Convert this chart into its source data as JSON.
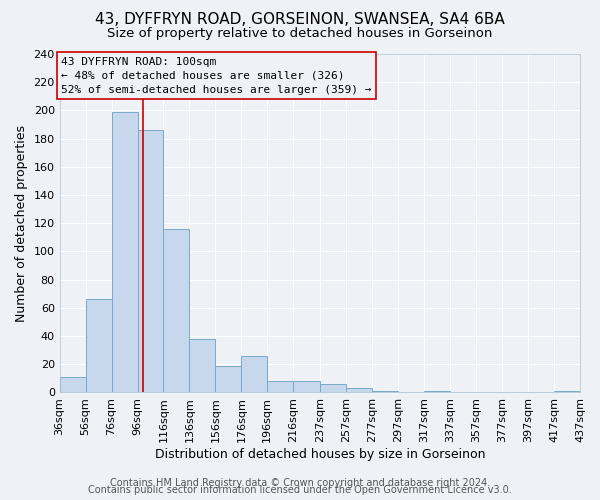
{
  "title": "43, DYFFRYN ROAD, GORSEINON, SWANSEA, SA4 6BA",
  "subtitle": "Size of property relative to detached houses in Gorseinon",
  "xlabel": "Distribution of detached houses by size in Gorseinon",
  "ylabel": "Number of detached properties",
  "bin_edges": [
    36,
    56,
    76,
    96,
    116,
    136,
    156,
    176,
    196,
    216,
    237,
    257,
    277,
    297,
    317,
    337,
    357,
    377,
    397,
    417,
    437
  ],
  "bin_labels": [
    "36sqm",
    "56sqm",
    "76sqm",
    "96sqm",
    "116sqm",
    "136sqm",
    "156sqm",
    "176sqm",
    "196sqm",
    "216sqm",
    "237sqm",
    "257sqm",
    "277sqm",
    "297sqm",
    "317sqm",
    "337sqm",
    "357sqm",
    "377sqm",
    "397sqm",
    "417sqm",
    "437sqm"
  ],
  "counts": [
    11,
    66,
    199,
    186,
    116,
    38,
    19,
    26,
    8,
    8,
    6,
    3,
    1,
    0,
    1,
    0,
    0,
    0,
    0,
    1
  ],
  "bar_color": "#c8d8ec",
  "bar_edge_color": "#7aaac8",
  "vline_x": 100,
  "vline_color": "#cc0000",
  "ylim": [
    0,
    240
  ],
  "yticks": [
    0,
    20,
    40,
    60,
    80,
    100,
    120,
    140,
    160,
    180,
    200,
    220,
    240
  ],
  "annotation_title": "43 DYFFRYN ROAD: 100sqm",
  "annotation_line1": "← 48% of detached houses are smaller (326)",
  "annotation_line2": "52% of semi-detached houses are larger (359) →",
  "annotation_box_edgecolor": "#cc0000",
  "footer_line1": "Contains HM Land Registry data © Crown copyright and database right 2024.",
  "footer_line2": "Contains public sector information licensed under the Open Government Licence v3.0.",
  "bg_color": "#eef2f7",
  "grid_color": "#ffffff",
  "title_fontsize": 11,
  "subtitle_fontsize": 9.5,
  "axis_label_fontsize": 9,
  "tick_fontsize": 8,
  "annotation_fontsize": 8,
  "footer_fontsize": 7
}
